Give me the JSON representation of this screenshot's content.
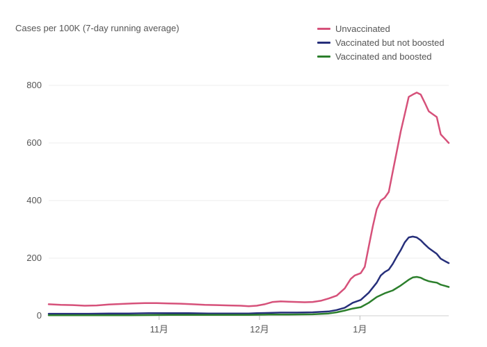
{
  "chart_data": {
    "type": "line",
    "ylabel": "Cases per 100K (7-day running average)",
    "ylim": [
      0,
      800
    ],
    "yticks": [
      0,
      200,
      400,
      600,
      800
    ],
    "xlim": [
      0,
      100
    ],
    "xticks": [
      {
        "label": "11月",
        "x": 27.6
      },
      {
        "label": "12月",
        "x": 52.7
      },
      {
        "label": "1月",
        "x": 77.8
      }
    ],
    "grid": true,
    "legend_position": "top-right",
    "series": [
      {
        "name": "Unvaccinated",
        "color": "#d6517a",
        "points": [
          [
            0,
            40
          ],
          [
            3,
            38
          ],
          [
            6,
            37
          ],
          [
            9,
            35
          ],
          [
            12,
            36
          ],
          [
            15,
            39
          ],
          [
            18,
            41
          ],
          [
            21,
            43
          ],
          [
            24,
            44
          ],
          [
            27,
            44
          ],
          [
            30,
            43
          ],
          [
            33,
            42
          ],
          [
            36,
            40
          ],
          [
            39,
            38
          ],
          [
            42,
            37
          ],
          [
            45,
            36
          ],
          [
            48,
            35
          ],
          [
            50,
            33
          ],
          [
            52,
            35
          ],
          [
            54,
            40
          ],
          [
            56,
            48
          ],
          [
            58,
            50
          ],
          [
            60,
            49
          ],
          [
            62,
            48
          ],
          [
            64,
            47
          ],
          [
            66,
            48
          ],
          [
            68,
            52
          ],
          [
            70,
            60
          ],
          [
            72,
            70
          ],
          [
            74,
            95
          ],
          [
            75.5,
            128
          ],
          [
            76.5,
            140
          ],
          [
            78,
            148
          ],
          [
            79,
            170
          ],
          [
            80,
            240
          ],
          [
            81,
            310
          ],
          [
            82,
            370
          ],
          [
            83,
            400
          ],
          [
            84,
            410
          ],
          [
            85,
            430
          ],
          [
            86,
            500
          ],
          [
            87,
            570
          ],
          [
            88,
            640
          ],
          [
            89,
            700
          ],
          [
            90,
            760
          ],
          [
            91,
            768
          ],
          [
            92,
            775
          ],
          [
            93,
            768
          ],
          [
            94,
            740
          ],
          [
            95,
            710
          ],
          [
            96,
            700
          ],
          [
            97,
            690
          ],
          [
            98,
            630
          ],
          [
            99,
            615
          ],
          [
            100,
            600
          ]
        ]
      },
      {
        "name": "Vaccinated but not boosted",
        "color": "#262f7a",
        "points": [
          [
            0,
            7
          ],
          [
            5,
            7
          ],
          [
            10,
            7
          ],
          [
            15,
            8
          ],
          [
            20,
            8
          ],
          [
            25,
            9
          ],
          [
            30,
            9
          ],
          [
            35,
            9
          ],
          [
            40,
            8
          ],
          [
            45,
            8
          ],
          [
            50,
            8
          ],
          [
            52,
            9
          ],
          [
            55,
            10
          ],
          [
            58,
            11
          ],
          [
            62,
            11
          ],
          [
            66,
            12
          ],
          [
            70,
            15
          ],
          [
            72,
            20
          ],
          [
            74,
            28
          ],
          [
            76,
            45
          ],
          [
            78,
            55
          ],
          [
            80,
            80
          ],
          [
            82,
            115
          ],
          [
            83,
            140
          ],
          [
            84,
            152
          ],
          [
            85,
            160
          ],
          [
            86,
            180
          ],
          [
            87,
            205
          ],
          [
            88,
            228
          ],
          [
            89,
            255
          ],
          [
            90,
            272
          ],
          [
            91,
            275
          ],
          [
            92,
            272
          ],
          [
            93,
            262
          ],
          [
            94,
            248
          ],
          [
            95,
            235
          ],
          [
            96,
            225
          ],
          [
            97,
            215
          ],
          [
            98,
            198
          ],
          [
            99,
            190
          ],
          [
            100,
            183
          ]
        ]
      },
      {
        "name": "Vaccinated and boosted",
        "color": "#2c7f2c",
        "points": [
          [
            0,
            2
          ],
          [
            10,
            2
          ],
          [
            20,
            2
          ],
          [
            30,
            3
          ],
          [
            40,
            3
          ],
          [
            50,
            3
          ],
          [
            55,
            4
          ],
          [
            60,
            4
          ],
          [
            66,
            5
          ],
          [
            70,
            8
          ],
          [
            72,
            12
          ],
          [
            74,
            18
          ],
          [
            76,
            25
          ],
          [
            78,
            30
          ],
          [
            80,
            45
          ],
          [
            82,
            65
          ],
          [
            84,
            78
          ],
          [
            86,
            88
          ],
          [
            88,
            105
          ],
          [
            90,
            125
          ],
          [
            91,
            133
          ],
          [
            92,
            135
          ],
          [
            93,
            132
          ],
          [
            94,
            125
          ],
          [
            95,
            120
          ],
          [
            96,
            117
          ],
          [
            97,
            115
          ],
          [
            98,
            108
          ],
          [
            99,
            104
          ],
          [
            100,
            100
          ]
        ]
      }
    ]
  }
}
